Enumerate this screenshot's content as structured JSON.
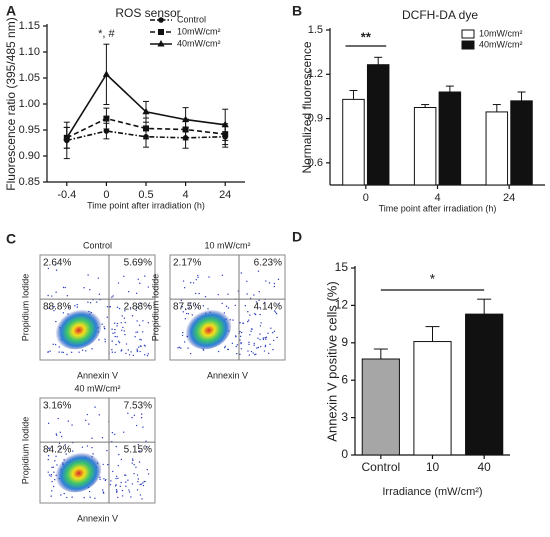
{
  "chart_data": [
    {
      "panel_label": "A",
      "type": "line",
      "title": "ROS sensor",
      "x_label": "Time point after irradiation (h)",
      "y_label": "Fluorescence ratio (395/485 nm)",
      "categories": [
        "-0.4",
        "0",
        "0.5",
        "4",
        "24"
      ],
      "series": [
        {
          "name": "Control",
          "color": "#111111",
          "dash": "dashdot",
          "marker": "circle",
          "values": [
            0.93,
            0.948,
            0.937,
            0.935,
            0.937
          ],
          "errors": [
            0.035,
            0.015,
            0.02,
            0.02,
            0.02
          ]
        },
        {
          "name": "10mW/cm²",
          "color": "#111111",
          "dash": "dashed",
          "marker": "square",
          "values": [
            0.935,
            0.972,
            0.953,
            0.951,
            0.942
          ],
          "errors": [
            0.02,
            0.02,
            0.02,
            0.02,
            0.02
          ]
        },
        {
          "name": "40mW/cm²",
          "color": "#111111",
          "dash": "solid",
          "marker": "triangle",
          "values": [
            0.935,
            1.057,
            0.985,
            0.97,
            0.96
          ],
          "errors": [
            0.02,
            0.058,
            0.02,
            0.023,
            0.03
          ]
        }
      ],
      "ylim": [
        0.85,
        1.15
      ],
      "yticks": [
        0.85,
        {
          "value": 0.9,
          "label": "0.90"
        },
        0.95,
        {
          "value": 1,
          "label": "1.00"
        },
        1.05,
        {
          "value": 1.1,
          "label": "1.10"
        },
        1.15
      ],
      "legend": "upper right",
      "annotations": [
        "*, #"
      ]
    },
    {
      "panel_label": "B",
      "type": "grouped_bar",
      "title": "DCFH-DA dye",
      "x_label": "Time point after irradiation (h)",
      "y_label": "Normalized fluorescence",
      "categories": [
        "0",
        "4",
        "24"
      ],
      "series": [
        {
          "name": "10mW/cm²",
          "color": "#ffffff",
          "values": [
            1.03,
            0.975,
            0.945
          ],
          "errors": [
            0.06,
            0.02,
            0.05
          ]
        },
        {
          "name": "40mW/cm²",
          "color": "#111111",
          "values": [
            1.265,
            1.08,
            1.02
          ],
          "errors": [
            0.05,
            0.04,
            0.06
          ]
        }
      ],
      "ylim": [
        0.45,
        1.5
      ],
      "yticks": [
        0.6,
        0.9,
        1.2,
        1.5
      ],
      "legend": "upper right",
      "annotations": [
        "**"
      ]
    },
    {
      "panel_label": "D",
      "type": "bar",
      "x_label": "Irradiance (mW/cm²)",
      "y_label": "Annexin V positive cells  (%)",
      "categories": [
        "Control",
        "10",
        "40"
      ],
      "values": [
        7.7,
        9.1,
        11.3
      ],
      "errors": [
        0.8,
        1.2,
        1.2
      ],
      "colors": [
        "#a6a6a6",
        "#ffffff",
        "#111111"
      ],
      "ylim": [
        0,
        15
      ],
      "yticks": [
        0,
        3,
        6,
        9,
        12,
        15
      ],
      "annotations": [
        "*"
      ]
    }
  ],
  "flow_cytometry": {
    "panel_label": "C",
    "x_label": "Annexin V",
    "y_label": "Propidium Iodide",
    "plots": [
      {
        "title": "Control",
        "quadrants": [
          "2.64%",
          "5.69%",
          "88.8%",
          "2.88%"
        ]
      },
      {
        "title": "10 mW/cm²",
        "quadrants": [
          "2.17%",
          "6.23%",
          "87.5%",
          "4.14%"
        ]
      },
      {
        "title": "40 mW/cm²",
        "quadrants": [
          "3.16%",
          "7.53%",
          "84.2%",
          "5.15%"
        ]
      }
    ]
  }
}
